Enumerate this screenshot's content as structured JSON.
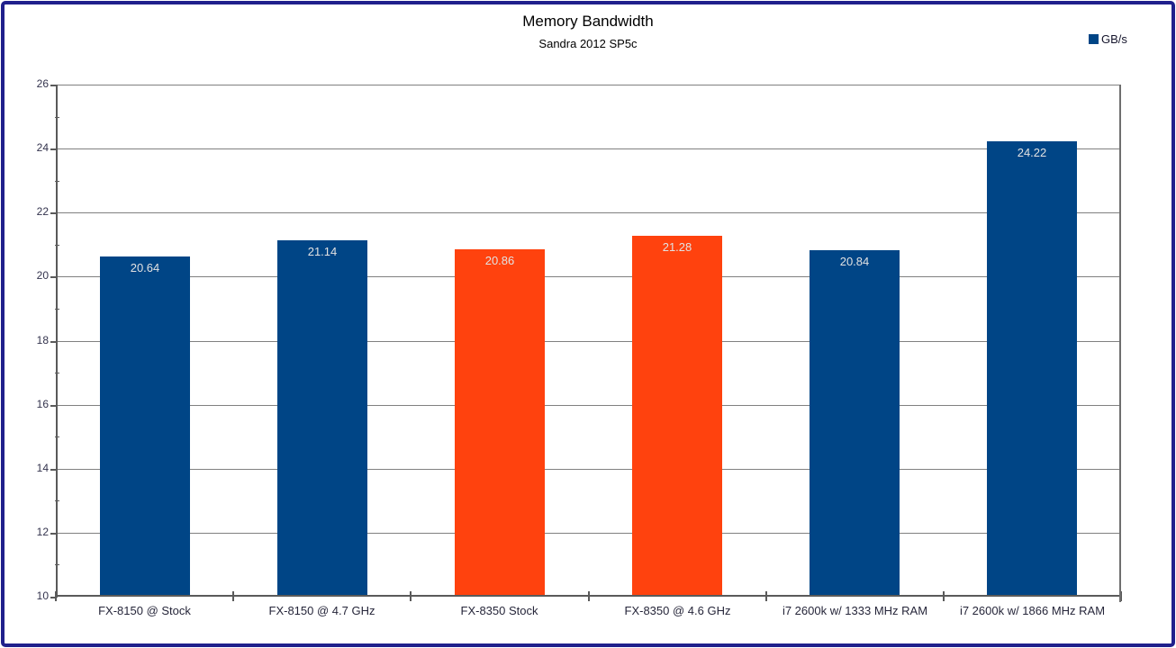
{
  "frame": {
    "border_color": "#20208C"
  },
  "chart_data": {
    "type": "bar",
    "title": "Memory Bandwidth",
    "subtitle": "Sandra 2012 SP5c",
    "legend": [
      {
        "label": "GB/s",
        "color": "#004586"
      }
    ],
    "legend_position": "top-right",
    "categories": [
      "FX-8150 @ Stock",
      "FX-8150 @ 4.7 GHz",
      "FX-8350 Stock",
      "FX-8350 @ 4.6 GHz",
      "i7 2600k w/ 1333 MHz RAM",
      "i7 2600k w/ 1866 MHz RAM"
    ],
    "values": [
      20.64,
      21.14,
      20.86,
      21.28,
      20.84,
      24.22
    ],
    "value_labels": [
      "20.64",
      "21.14",
      "20.86",
      "21.28",
      "20.84",
      "24.22"
    ],
    "bar_colors": [
      "#004586",
      "#004586",
      "#FF420E",
      "#FF420E",
      "#004586",
      "#004586"
    ],
    "ylabel": "",
    "xlabel": "",
    "ylim": [
      10,
      26
    ],
    "y_major_ticks": [
      10,
      12,
      14,
      16,
      18,
      20,
      22,
      24,
      26
    ],
    "y_minor_step": 1,
    "grid": true,
    "grid_color": "#808080",
    "data_label_color": "#e2e2e2"
  }
}
